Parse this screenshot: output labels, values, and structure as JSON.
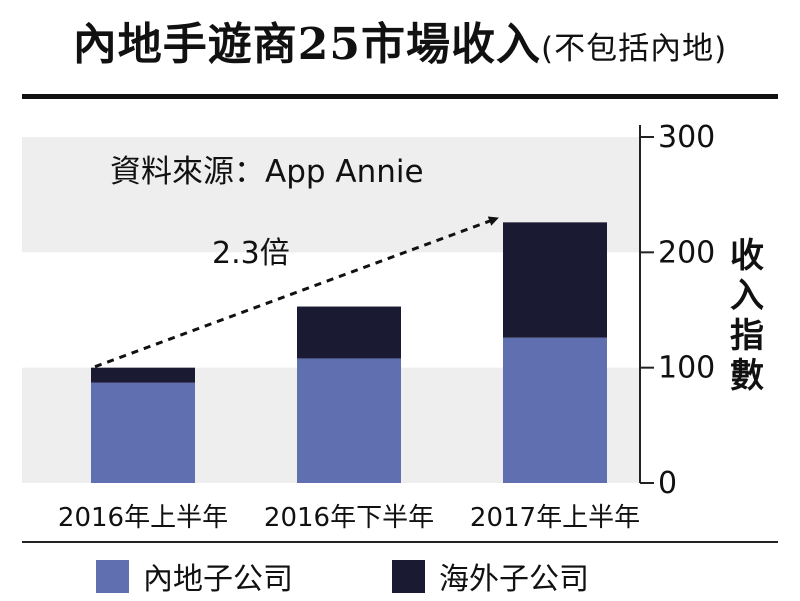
{
  "title": {
    "main": "內地手遊商25市場收入",
    "sub": "(不包括內地)"
  },
  "source": "資料來源：App  Annie",
  "annotation": "2.3倍",
  "colors": {
    "domestic": "#5f6fb0",
    "overseas": "#1a1a33",
    "band": "#eeeeee"
  },
  "chart_data": {
    "type": "bar",
    "stacked": true,
    "categories": [
      "2016年上半年",
      "2016年下半年",
      "2017年上半年"
    ],
    "series": [
      {
        "name": "內地子公司",
        "values": [
          87,
          108,
          126
        ]
      },
      {
        "name": "海外子公司",
        "values": [
          13,
          45,
          100
        ]
      }
    ],
    "ylabel": "收入指數",
    "ylim": [
      0,
      300
    ],
    "yticks": [
      0,
      100,
      200,
      300
    ],
    "y_axis_side": "right",
    "legend": "bottom",
    "grid": false
  }
}
